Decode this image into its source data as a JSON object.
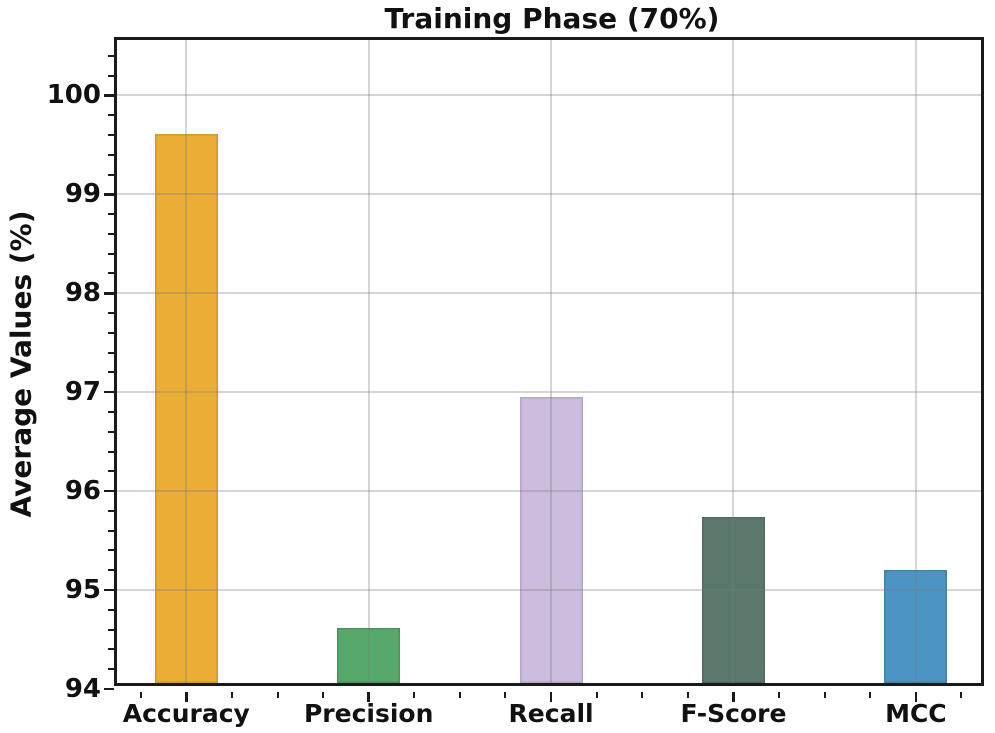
{
  "chart_data": {
    "type": "bar",
    "title": "Training Phase (70%)",
    "xlabel": "",
    "ylabel": "Average Values (%)",
    "categories": [
      "Accuracy",
      "Precision",
      "Recall",
      "F-Score",
      "MCC"
    ],
    "values": [
      99.55,
      94.56,
      96.89,
      95.68,
      95.14
    ],
    "bar_colors": [
      "#EAAD35",
      "#56A86B",
      "#CCBDDE",
      "#5A796C",
      "#4B94C4"
    ],
    "ylim": [
      94,
      100.56
    ],
    "xlim": [
      -0.38,
      4.39
    ],
    "yticks": [
      94,
      95,
      96,
      97,
      98,
      99,
      100
    ],
    "ytick_labels": [
      "94",
      "95",
      "96",
      "97",
      "98",
      "99",
      "100"
    ],
    "y_minor_step": 0.2,
    "x_minor_step": 0.25,
    "bar_width": 0.345,
    "grid": "on",
    "grid_over_bars": true,
    "legend_position": "none",
    "axis_color": "#1a1a1a",
    "text_color": "#111111"
  }
}
